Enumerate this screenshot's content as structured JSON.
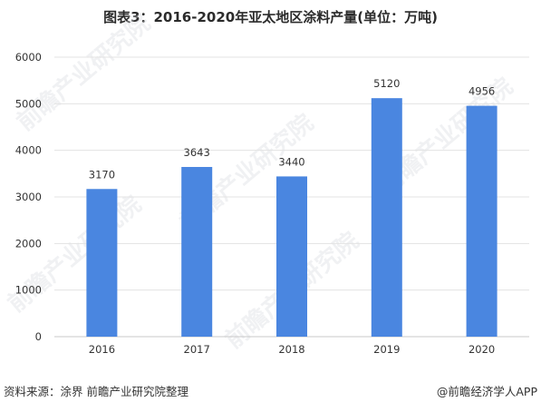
{
  "title": "图表3：2016-2020年亚太地区涂料产量(单位：万吨)",
  "footer": {
    "source": "资料来源：涂界 前瞻产业研究院整理",
    "brand": "@前瞻经济学人APP"
  },
  "watermark": {
    "text": "前瞻产业研究院"
  },
  "colors": {
    "bar": "#4A86E0",
    "grid": "#e3e3e3",
    "axis": "#c8c8c8",
    "text": "#333333"
  },
  "chart_data": {
    "type": "bar",
    "title": "图表3：2016-2020年亚太地区涂料产量(单位：万吨)",
    "categories": [
      "2016",
      "2017",
      "2018",
      "2019",
      "2020"
    ],
    "values": [
      3170,
      3643,
      3440,
      5120,
      4956
    ],
    "data_labels": [
      "3170",
      "3643",
      "3440",
      "5120",
      "4956"
    ],
    "ylim": [
      0,
      6000
    ],
    "yticks": [
      0,
      1000,
      2000,
      3000,
      4000,
      5000,
      6000
    ],
    "ytick_labels": [
      "0",
      "1000",
      "2000",
      "3000",
      "4000",
      "5000",
      "6000"
    ],
    "xlabel": "",
    "ylabel": "",
    "grid": true,
    "legend": "none"
  }
}
